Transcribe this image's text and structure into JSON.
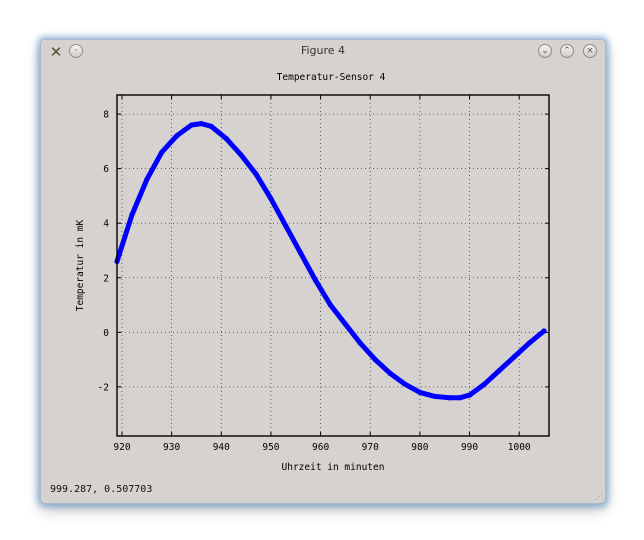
{
  "window": {
    "title": "Figure 4",
    "icon": "x-window-icon",
    "controls": [
      "minimize-icon",
      "maximize-icon",
      "close-icon"
    ]
  },
  "status": {
    "coords": "999.287,  0.507703"
  },
  "chart_data": {
    "type": "line",
    "title": "Temperatur-Sensor 4",
    "xlabel": "Uhrzeit in minuten",
    "ylabel": "Temperatur in mK",
    "xlim": [
      919,
      1006
    ],
    "ylim": [
      -3.8,
      8.7
    ],
    "xticks": [
      920,
      930,
      940,
      950,
      960,
      970,
      980,
      990,
      1000
    ],
    "yticks": [
      -2,
      0,
      2,
      4,
      6,
      8
    ],
    "grid": true,
    "color": "#0000ff",
    "series": [
      {
        "x": [
          919,
          922,
          925,
          928,
          931,
          934,
          936,
          938,
          941,
          944,
          947,
          950,
          953,
          956,
          959,
          962,
          965,
          968,
          971,
          974,
          977,
          980,
          983,
          986,
          988,
          990,
          993,
          996,
          999,
          1002,
          1005
        ],
        "y": [
          2.6,
          4.3,
          5.6,
          6.6,
          7.2,
          7.6,
          7.65,
          7.55,
          7.1,
          6.5,
          5.8,
          4.9,
          3.9,
          2.9,
          1.9,
          1.0,
          0.3,
          -0.4,
          -1.0,
          -1.5,
          -1.9,
          -2.2,
          -2.35,
          -2.4,
          -2.4,
          -2.3,
          -1.9,
          -1.4,
          -0.9,
          -0.4,
          0.05
        ]
      }
    ]
  }
}
